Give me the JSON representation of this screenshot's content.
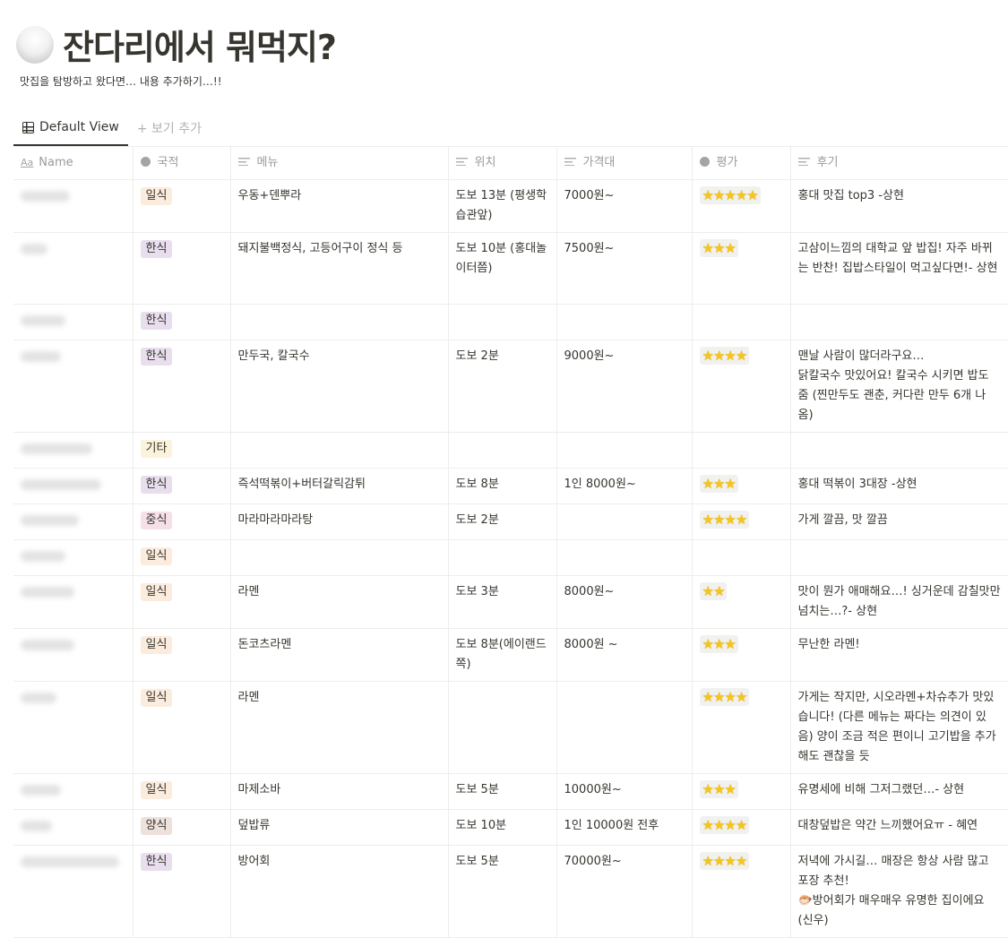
{
  "page": {
    "icon": "rice-bowl-icon",
    "title": "잔다리에서 뭐먹지?",
    "description": "맛집을 탐방하고 왔다면… 내용 추가하기…!!"
  },
  "views": {
    "active": "Default View",
    "add": "+ 보기 추가"
  },
  "columns": [
    {
      "label": "Name",
      "icon": "title-icon"
    },
    {
      "label": "국적",
      "icon": "select-icon"
    },
    {
      "label": "메뉴",
      "icon": "text-icon"
    },
    {
      "label": "위치",
      "icon": "text-icon"
    },
    {
      "label": "가격대",
      "icon": "text-icon"
    },
    {
      "label": "평가",
      "icon": "select-icon"
    },
    {
      "label": "후기",
      "icon": "text-icon"
    }
  ],
  "tag_colors": {
    "일식": "#fbecdd",
    "한식": "#e8deee",
    "기타": "#fbf3db",
    "중식": "#f5e0e9",
    "양식": "#eee0da"
  },
  "rows": [
    {
      "cuisine": "일식",
      "menu": "우동+덴뿌라",
      "location": "도보 13분 (평생학습관앞)",
      "price": "7000원~",
      "rating": 5,
      "review": "홍대 맛집 top3 -상현"
    },
    {
      "cuisine": "한식",
      "menu": "돼지불백정식, 고등어구이 정식 등",
      "location": "도보 10분 (홍대놀이터쯤)",
      "price": "7500원~",
      "rating": 3,
      "review": "고삼이느낌의 대학교 앞 밥집! 자주 바뀌는 반찬! 집밥스타일이 먹고싶다면!- 상현"
    },
    {
      "cuisine": "한식",
      "menu": "",
      "location": "",
      "price": "",
      "rating": 0,
      "review": ""
    },
    {
      "cuisine": "한식",
      "menu": "만두국, 칼국수",
      "location": "도보 2분",
      "price": "9000원~",
      "rating": 4,
      "review": "맨날 사람이 많더라구요…\n닭칼국수 맛있어요! 칼국수 시키면 밥도 줌 (찐만두도 괜춘, 커다란 만두 6개 나옴)"
    },
    {
      "cuisine": "기타",
      "menu": "",
      "location": "",
      "price": "",
      "rating": 0,
      "review": ""
    },
    {
      "cuisine": "한식",
      "menu": "즉석떡볶이+버터갈릭감튀",
      "location": "도보 8분",
      "price": "1인 8000원~",
      "rating": 3,
      "review": "홍대 떡볶이 3대장 -상현"
    },
    {
      "cuisine": "중식",
      "menu": "마라마라마라탕",
      "location": "도보 2분",
      "price": "",
      "rating": 4,
      "review": "가게 깔끔, 맛 깔끔"
    },
    {
      "cuisine": "일식",
      "menu": "",
      "location": "",
      "price": "",
      "rating": 0,
      "review": ""
    },
    {
      "cuisine": "일식",
      "menu": "라멘",
      "location": "도보 3분",
      "price": "8000원~",
      "rating": 2,
      "review": "맛이 뭔가 애매해요…! 싱거운데 감칠맛만 넘치는…?- 상현"
    },
    {
      "cuisine": "일식",
      "menu": "돈코츠라멘",
      "location": "도보 8분(에이랜드 쪽)",
      "price": "8000원 ~",
      "rating": 3,
      "review": "무난한 라멘!"
    },
    {
      "cuisine": "일식",
      "menu": "라멘",
      "location": "",
      "price": "",
      "rating": 4,
      "review": "가게는 작지만, 시오라멘+차슈추가 맛있습니다! (다른 메뉴는 짜다는 의견이 있음) 양이 조금 적은 편이니 고기밥을 추가해도 괜찮을 듯"
    },
    {
      "cuisine": "일식",
      "menu": "마제소바",
      "location": "도보 5분",
      "price": "10000원~",
      "rating": 3,
      "review": "유명세에 비해 그저그랬던…- 상현"
    },
    {
      "cuisine": "양식",
      "menu": "덮밥류",
      "location": "도보 10분",
      "price": "1인 10000원 전후",
      "rating": 4,
      "review": "대창덮밥은 약간 느끼했어요ㅠ - 혜연"
    },
    {
      "cuisine": "한식",
      "menu": "방어회",
      "location": "도보 5분",
      "price": "70000원~",
      "rating": 4,
      "review": "저녁에 가시길… 매장은 항상 사람 많고 포장 추천!\n🐡방어회가 매우매우 유명한 집이에요 (신우)"
    }
  ]
}
